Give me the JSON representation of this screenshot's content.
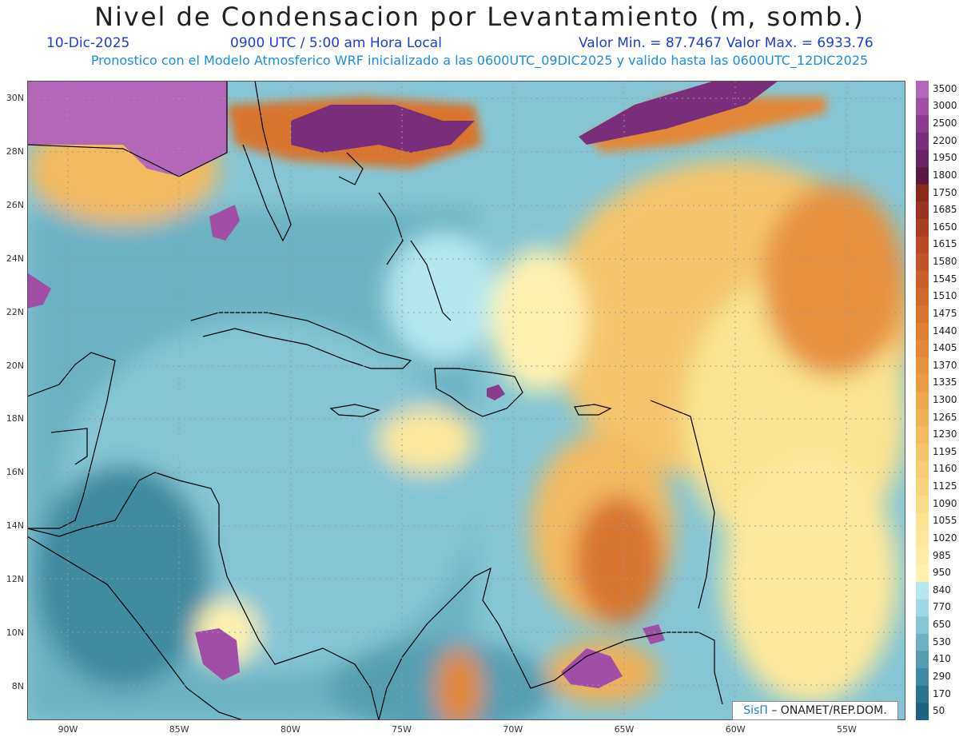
{
  "title": "Nivel de Condensacion por Levantamiento (m, somb.)",
  "date": "10-Dic-2025",
  "time": "0900 UTC / 5:00 am Hora Local",
  "minmax": "Valor Min. = 87.7467   Valor Max. = 6933.76",
  "model_info": "Pronostico con el Modelo Atmosferico WRF inicializado a las 0600UTC_09DIC2025 y valido hasta las  0600UTC_12DIC2025",
  "lat_labels": [
    "30N",
    "28N",
    "26N",
    "24N",
    "22N",
    "20N",
    "18N",
    "16N",
    "14N",
    "12N",
    "10N",
    "8N"
  ],
  "lon_labels": [
    "90W",
    "85W",
    "80W",
    "75W",
    "70W",
    "65W",
    "60W",
    "55W"
  ],
  "colorbar": [
    {
      "label": "3500",
      "color": "#b466b8"
    },
    {
      "label": "3000",
      "color": "#a04ea6"
    },
    {
      "label": "2500",
      "color": "#8b3a8e"
    },
    {
      "label": "2200",
      "color": "#7a2d7a"
    },
    {
      "label": "1950",
      "color": "#6a2460"
    },
    {
      "label": "1800",
      "color": "#5a1a40"
    },
    {
      "label": "1750",
      "color": "#8a2a1c"
    },
    {
      "label": "1685",
      "color": "#9a3420"
    },
    {
      "label": "1650",
      "color": "#a83e22"
    },
    {
      "label": "1615",
      "color": "#b54a24"
    },
    {
      "label": "1580",
      "color": "#c05626"
    },
    {
      "label": "1545",
      "color": "#c96028"
    },
    {
      "label": "1510",
      "color": "#d06a2a"
    },
    {
      "label": "1475",
      "color": "#d7742e"
    },
    {
      "label": "1440",
      "color": "#dd7e32"
    },
    {
      "label": "1405",
      "color": "#e28838"
    },
    {
      "label": "1370",
      "color": "#e6923e"
    },
    {
      "label": "1335",
      "color": "#ea9c44"
    },
    {
      "label": "1300",
      "color": "#eda64c"
    },
    {
      "label": "1265",
      "color": "#f0b056"
    },
    {
      "label": "1230",
      "color": "#f3ba60"
    },
    {
      "label": "1195",
      "color": "#f5c46a"
    },
    {
      "label": "1160",
      "color": "#f7cc74"
    },
    {
      "label": "1125",
      "color": "#f8d47e"
    },
    {
      "label": "1090",
      "color": "#f9dc88"
    },
    {
      "label": "1055",
      "color": "#fae392"
    },
    {
      "label": "1020",
      "color": "#fbe89c"
    },
    {
      "label": "985",
      "color": "#fced a6"
    },
    {
      "label": "950",
      "color": "#fdf1b0"
    },
    {
      "label": "840",
      "color": "#b4e8ee"
    },
    {
      "label": "770",
      "color": "#9ed8e2"
    },
    {
      "label": "650",
      "color": "#86c6d4"
    },
    {
      "label": "530",
      "color": "#6cb2c4"
    },
    {
      "label": "410",
      "color": "#559eb2"
    },
    {
      "label": "290",
      "color": "#3f8aa2"
    },
    {
      "label": "170",
      "color": "#2b7490"
    },
    {
      "label": "50",
      "color": "#1d6280"
    }
  ],
  "credit_brand": "SisΠ",
  "credit_text": "– ONAMET/REP.DOM."
}
